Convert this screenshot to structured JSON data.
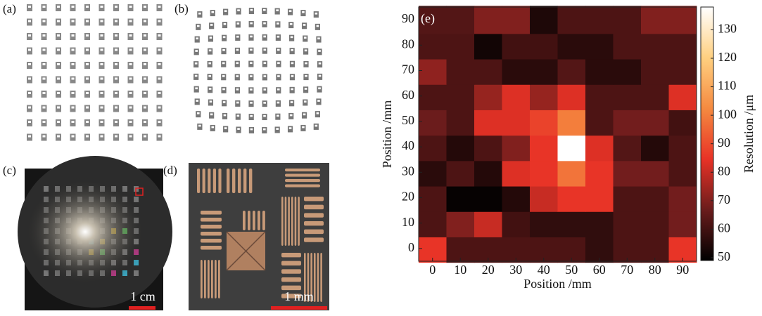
{
  "panels": [
    {
      "label": "(a)"
    },
    {
      "label": "(b)"
    },
    {
      "label": "(c)",
      "scale_bar": "1 cm"
    },
    {
      "label": "(d)",
      "scale_bar": "1 mm"
    }
  ],
  "chart_data": {
    "type": "heatmap",
    "title": "(e)",
    "x": [
      0,
      10,
      20,
      30,
      40,
      50,
      60,
      70,
      80,
      90
    ],
    "y": [
      0,
      10,
      20,
      30,
      40,
      50,
      60,
      70,
      80,
      90
    ],
    "values": [
      [
        85,
        62,
        62,
        62,
        62,
        62,
        57,
        62,
        62,
        85
      ],
      [
        62,
        70,
        80,
        60,
        57,
        57,
        57,
        62,
        62,
        68
      ],
      [
        62,
        50,
        50,
        55,
        80,
        85,
        85,
        62,
        62,
        68
      ],
      [
        56,
        62,
        55,
        83,
        85,
        98,
        85,
        68,
        68,
        62
      ],
      [
        62,
        55,
        62,
        70,
        85,
        138,
        83,
        63,
        55,
        62
      ],
      [
        67,
        62,
        83,
        83,
        88,
        100,
        62,
        68,
        68,
        60
      ],
      [
        62,
        62,
        73,
        83,
        73,
        83,
        62,
        62,
        62,
        83
      ],
      [
        72,
        62,
        62,
        56,
        56,
        63,
        56,
        56,
        62,
        62
      ],
      [
        62,
        62,
        52,
        60,
        60,
        56,
        56,
        62,
        62,
        62
      ],
      [
        63,
        63,
        70,
        70,
        54,
        62,
        62,
        62,
        70,
        70
      ]
    ],
    "xlim": [
      -5,
      95
    ],
    "ylim": [
      -5,
      95
    ],
    "xticks": [
      0,
      10,
      20,
      30,
      40,
      50,
      60,
      70,
      80,
      90
    ],
    "yticks": [
      0,
      10,
      20,
      30,
      40,
      50,
      60,
      70,
      80,
      90
    ],
    "xlabel": "Position /mm",
    "ylabel": "Position /mm",
    "clim": [
      49,
      138
    ],
    "cticks": [
      50,
      60,
      70,
      80,
      90,
      100,
      110,
      120,
      130
    ],
    "colorbar_label": "Resolution /μm",
    "colormap": [
      "#000000",
      "#6a1c1c",
      "#e83226",
      "#f58a40",
      "#ffd080",
      "#ffffff"
    ]
  }
}
